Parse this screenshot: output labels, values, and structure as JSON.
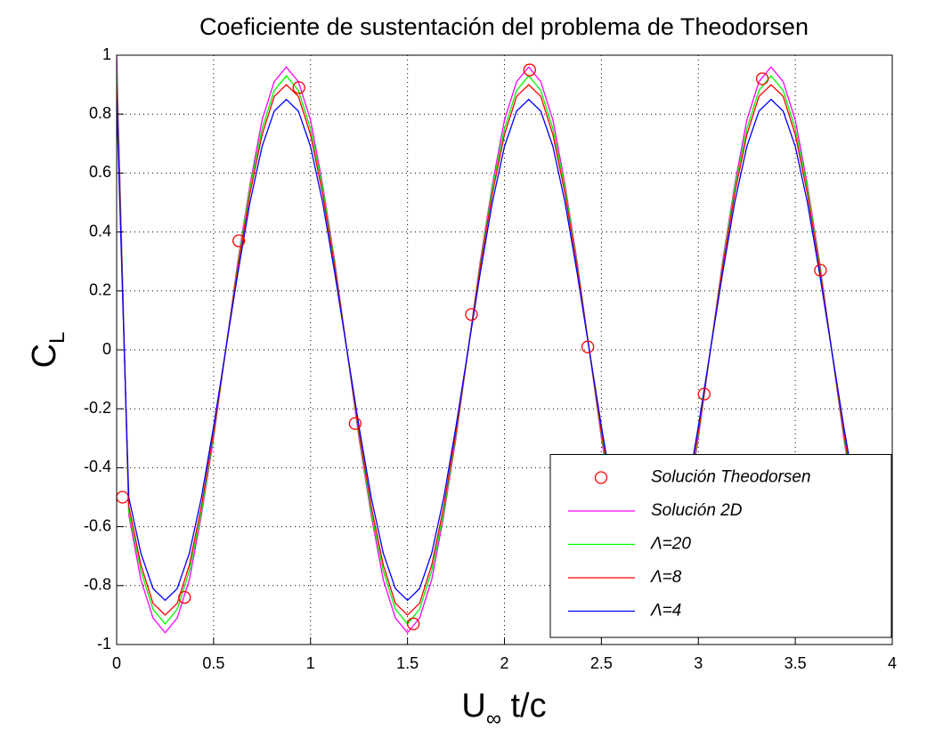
{
  "chart_data": {
    "type": "line",
    "title": "Coeficiente de sustentación del problema de Theodorsen",
    "xlabel": {
      "main": "U",
      "sub": "∞",
      "rest": " t/c"
    },
    "ylabel": {
      "main": "C",
      "sub": "L"
    },
    "xlim": [
      0,
      4
    ],
    "ylim": [
      -1,
      1
    ],
    "xticks": [
      0,
      0.5,
      1,
      1.5,
      2,
      2.5,
      3,
      3.5,
      4
    ],
    "yticks": [
      -1,
      -0.8,
      -0.6,
      -0.4,
      -0.2,
      0,
      0.2,
      0.4,
      0.6,
      0.8,
      1
    ],
    "grid": true,
    "legend": "lower right",
    "x": [
      0,
      0.0625,
      0.125,
      0.1875,
      0.25,
      0.3125,
      0.375,
      0.4375,
      0.5,
      0.5625,
      0.625,
      0.6875,
      0.75,
      0.8125,
      0.875,
      0.9375,
      1,
      1.0625,
      1.125,
      1.1875,
      1.25,
      1.3125,
      1.375,
      1.4375,
      1.5,
      1.5625,
      1.625,
      1.6875,
      1.75,
      1.8125,
      1.875,
      1.9375,
      2,
      2.0625,
      2.125,
      2.1875,
      2.25,
      2.3125,
      2.375,
      2.4375,
      2.5,
      2.5625,
      2.625,
      2.6875,
      2.75,
      2.8125,
      2.875,
      2.9375,
      3,
      3.0625,
      3.125,
      3.1875,
      3.25,
      3.3125,
      3.375,
      3.4375,
      3.5,
      3.5625,
      3.625,
      3.6875,
      3.75,
      3.8125,
      3.875,
      3.9375,
      4
    ],
    "series": [
      {
        "name": "Solución Theodorsen",
        "color": "#ff0000",
        "marker": "o",
        "x": [
          0.03,
          0.35,
          0.63,
          0.94,
          1.23,
          1.53,
          1.83,
          2.13,
          2.43,
          3.03,
          3.33,
          3.63
        ],
        "values": [
          -0.5,
          -0.84,
          0.37,
          0.89,
          -0.25,
          -0.93,
          0.12,
          0.95,
          0.01,
          -0.15,
          0.92,
          0.27
        ]
      },
      {
        "name": "Solución 2D",
        "color": "#ff00ff",
        "values": [
          1.0,
          -0.56,
          -0.78,
          -0.91,
          -0.96,
          -0.91,
          -0.78,
          -0.56,
          -0.3,
          0,
          0.3,
          0.56,
          0.78,
          0.91,
          0.96,
          0.91,
          0.78,
          0.56,
          0.3,
          0,
          -0.3,
          -0.56,
          -0.78,
          -0.91,
          -0.96,
          -0.91,
          -0.78,
          -0.56,
          -0.3,
          0,
          0.3,
          0.56,
          0.78,
          0.91,
          0.96,
          0.91,
          0.78,
          0.56,
          0.3,
          0,
          -0.3,
          -0.56,
          -0.78,
          -0.91,
          -0.96,
          -0.91,
          -0.78,
          -0.56,
          -0.3,
          0,
          0.3,
          0.56,
          0.78,
          0.91,
          0.96,
          0.91,
          0.78,
          0.56,
          0.3,
          0,
          -0.3,
          -0.56,
          -0.78,
          -0.91,
          -0.96
        ]
      },
      {
        "name": "Λ=20",
        "color": "#00ff00",
        "values": [
          0.95,
          -0.55,
          -0.75,
          -0.88,
          -0.93,
          -0.88,
          -0.75,
          -0.55,
          -0.29,
          0,
          0.29,
          0.55,
          0.75,
          0.88,
          0.93,
          0.88,
          0.75,
          0.55,
          0.29,
          0,
          -0.29,
          -0.55,
          -0.75,
          -0.88,
          -0.93,
          -0.88,
          -0.75,
          -0.55,
          -0.29,
          0,
          0.29,
          0.55,
          0.75,
          0.88,
          0.93,
          0.88,
          0.75,
          0.55,
          0.29,
          0,
          -0.29,
          -0.55,
          -0.75,
          -0.88,
          -0.93,
          -0.88,
          -0.75,
          -0.55,
          -0.29,
          0,
          0.29,
          0.55,
          0.75,
          0.88,
          0.93,
          0.88,
          0.75,
          0.55,
          0.29,
          0,
          -0.29,
          -0.55,
          -0.75,
          -0.88,
          -0.93
        ]
      },
      {
        "name": "Λ=8",
        "color": "#ff0000",
        "values": [
          0.9,
          -0.53,
          -0.73,
          -0.86,
          -0.9,
          -0.86,
          -0.73,
          -0.53,
          -0.28,
          0,
          0.28,
          0.53,
          0.73,
          0.86,
          0.9,
          0.86,
          0.73,
          0.53,
          0.28,
          0,
          -0.28,
          -0.53,
          -0.73,
          -0.86,
          -0.9,
          -0.86,
          -0.73,
          -0.53,
          -0.28,
          0,
          0.28,
          0.53,
          0.73,
          0.86,
          0.9,
          0.86,
          0.73,
          0.53,
          0.28,
          0,
          -0.28,
          -0.53,
          -0.73,
          -0.86,
          -0.9,
          -0.86,
          -0.73,
          -0.53,
          -0.28,
          0,
          0.28,
          0.53,
          0.73,
          0.86,
          0.9,
          0.86,
          0.73,
          0.53,
          0.28,
          0,
          -0.28,
          -0.53,
          -0.73,
          -0.86,
          -0.9
        ]
      },
      {
        "name": "Λ=4",
        "color": "#0000ff",
        "values": [
          0.85,
          -0.5,
          -0.69,
          -0.81,
          -0.85,
          -0.81,
          -0.69,
          -0.5,
          -0.26,
          0,
          0.26,
          0.5,
          0.69,
          0.81,
          0.85,
          0.81,
          0.69,
          0.5,
          0.26,
          0,
          -0.26,
          -0.5,
          -0.69,
          -0.81,
          -0.85,
          -0.81,
          -0.69,
          -0.5,
          -0.26,
          0,
          0.26,
          0.5,
          0.69,
          0.81,
          0.85,
          0.81,
          0.69,
          0.5,
          0.26,
          0,
          -0.26,
          -0.5,
          -0.69,
          -0.81,
          -0.85,
          -0.81,
          -0.69,
          -0.5,
          -0.26,
          0,
          0.26,
          0.5,
          0.69,
          0.81,
          0.85,
          0.81,
          0.69,
          0.5,
          0.26,
          0,
          -0.26,
          -0.5,
          -0.69,
          -0.81,
          -0.85
        ]
      }
    ]
  }
}
